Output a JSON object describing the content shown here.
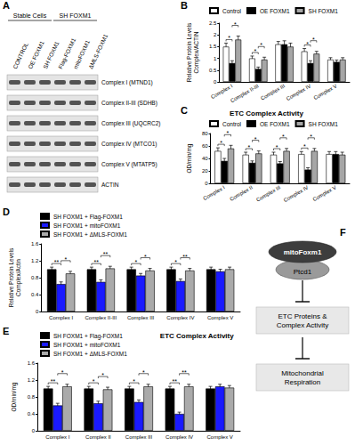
{
  "blot": {
    "label": "A",
    "groups": [
      {
        "text": "Stable Cells",
        "from": 0,
        "to": 2
      },
      {
        "text": "SH FOXM1",
        "from": 3,
        "to": 5
      }
    ],
    "lanes": [
      "CONTROL",
      "OE FOXM1",
      "SH FOXM1",
      "Flag-FOXM1",
      "mitoFOXM1",
      "ΔMLS-FOXM1"
    ],
    "bands": [
      "Complex I (MTND1)",
      "Complex II-III (SDHB)",
      "Complex III (UQCRC2)",
      "Complex IV (MTCO1)",
      "Complex V (MTATP5)",
      "ACTIN"
    ]
  },
  "chart_data": [
    {
      "label": "B",
      "type": "bar",
      "y_label": "Relative Protein Levels\nComplex/ACTIN",
      "categories": [
        "Complex I",
        "Complex II-III",
        "Complex III",
        "Complex IV",
        "Complex V"
      ],
      "series": [
        {
          "name": "Control",
          "color": "#ffffff",
          "values": [
            1.5,
            1.0,
            1.6,
            1.3,
            0.95
          ],
          "errors": [
            0.15,
            0.1,
            0.12,
            0.12,
            0.08
          ]
        },
        {
          "name": "OE FOXM1",
          "color": "#000000",
          "values": [
            0.8,
            0.55,
            1.6,
            0.8,
            0.85
          ],
          "errors": [
            0.1,
            0.08,
            0.15,
            0.1,
            0.08
          ]
        },
        {
          "name": "SH FOXM1",
          "color": "#a6a6a6",
          "values": [
            1.8,
            0.95,
            1.5,
            1.2,
            0.95
          ],
          "errors": [
            0.15,
            0.1,
            0.15,
            0.1,
            0.08
          ]
        }
      ],
      "comparisons": [
        {
          "category": "Complex I",
          "bars": [
            0,
            1
          ],
          "text": "*"
        },
        {
          "category": "Complex I",
          "bars": [
            1,
            2
          ],
          "text": "*"
        },
        {
          "category": "Complex II-III",
          "bars": [
            0,
            1
          ],
          "text": "*"
        },
        {
          "category": "Complex II-III",
          "bars": [
            1,
            2
          ],
          "text": "*"
        },
        {
          "category": "Complex IV",
          "bars": [
            0,
            1
          ],
          "text": "*"
        },
        {
          "category": "Complex IV",
          "bars": [
            1,
            2
          ],
          "text": "*"
        }
      ],
      "ylim": [
        0,
        2.5
      ],
      "yticks": [
        0,
        0.5,
        1,
        1.5,
        2,
        2.5
      ],
      "grid": false
    },
    {
      "label": "C",
      "type": "bar",
      "title": "ETC Complex Activity",
      "y_label": "OD/min/mg",
      "categories": [
        "Complex I",
        "Complex II",
        "Complex III",
        "Complex IV",
        "Complex V"
      ],
      "series": [
        {
          "name": "Control",
          "color": "#ffffff",
          "values": [
            52,
            46,
            46,
            47,
            47
          ],
          "errors": [
            5,
            4,
            4,
            4,
            4
          ]
        },
        {
          "name": "OE FOXM1",
          "color": "#000000",
          "values": [
            36,
            33,
            32,
            22,
            47
          ],
          "errors": [
            4,
            3,
            3,
            3,
            4
          ]
        },
        {
          "name": "SH FOXM1",
          "color": "#a6a6a6",
          "values": [
            56,
            48,
            52,
            52,
            46
          ],
          "errors": [
            5,
            4,
            4,
            4,
            4
          ]
        }
      ],
      "comparisons": [
        {
          "category": "Complex I",
          "bars": [
            0,
            1
          ],
          "text": "*"
        },
        {
          "category": "Complex I",
          "bars": [
            1,
            2
          ],
          "text": "*"
        },
        {
          "category": "Complex II",
          "bars": [
            0,
            1
          ],
          "text": "*"
        },
        {
          "category": "Complex II",
          "bars": [
            1,
            2
          ],
          "text": "*"
        },
        {
          "category": "Complex III",
          "bars": [
            0,
            1
          ],
          "text": "*"
        },
        {
          "category": "Complex III",
          "bars": [
            1,
            2
          ],
          "text": "*"
        },
        {
          "category": "Complex IV",
          "bars": [
            0,
            1
          ],
          "text": "*"
        },
        {
          "category": "Complex IV",
          "bars": [
            1,
            2
          ],
          "text": "*"
        }
      ],
      "ylim": [
        0,
        80
      ],
      "yticks": [
        0,
        20,
        40,
        60,
        80
      ],
      "grid": false
    },
    {
      "label": "D",
      "type": "bar",
      "y_label": "Relative Protein Levels\nComplex/Actin",
      "categories": [
        "Complex I",
        "Complex II-III",
        "Complex III",
        "Complex IV",
        "Complex V"
      ],
      "series": [
        {
          "name": "SH FOXM1 + Flag-FOXM1",
          "color": "#000000",
          "values": [
            1.0,
            1.0,
            1.0,
            1.0,
            1.0
          ],
          "errors": [
            0.05,
            0.05,
            0.05,
            0.05,
            0.05
          ]
        },
        {
          "name": "SH FOXM1 + mitoFOXM1",
          "color": "#1a1aff",
          "values": [
            0.65,
            0.7,
            0.85,
            0.72,
            0.95
          ],
          "errors": [
            0.05,
            0.05,
            0.05,
            0.05,
            0.05
          ]
        },
        {
          "name": "SH FOXM1 + ΔMLS-FOXM1",
          "color": "#aaaaaa",
          "values": [
            0.9,
            1.02,
            0.97,
            0.97,
            1.0
          ],
          "errors": [
            0.05,
            0.05,
            0.05,
            0.05,
            0.05
          ]
        }
      ],
      "comparisons": [
        {
          "category": "Complex I",
          "bars": [
            0,
            1
          ],
          "text": "**"
        },
        {
          "category": "Complex I",
          "bars": [
            1,
            2
          ],
          "text": "*"
        },
        {
          "category": "Complex II-III",
          "bars": [
            0,
            1
          ],
          "text": "**"
        },
        {
          "category": "Complex II-III",
          "bars": [
            1,
            2
          ],
          "text": "**"
        },
        {
          "category": "Complex III",
          "bars": [
            0,
            1
          ],
          "text": "*"
        },
        {
          "category": "Complex III",
          "bars": [
            1,
            2
          ],
          "text": "*"
        },
        {
          "category": "Complex IV",
          "bars": [
            0,
            1
          ],
          "text": "*"
        },
        {
          "category": "Complex IV",
          "bars": [
            1,
            2
          ],
          "text": "**"
        }
      ],
      "ylim": [
        0,
        1.6
      ],
      "yticks": [
        0,
        0.4,
        0.8,
        1.2,
        1.6
      ],
      "grid": false
    },
    {
      "label": "E",
      "type": "bar",
      "title": "ETC Complex Activity",
      "y_label": "OD/min/mg",
      "categories": [
        "Complex I",
        "Complex II",
        "Complex III",
        "Complex IV",
        "Complex V"
      ],
      "series": [
        {
          "name": "SH FOXM1 + Flag-FOXM1",
          "color": "#000000",
          "values": [
            1.0,
            1.0,
            1.0,
            1.0,
            1.0
          ],
          "errors": [
            0.05,
            0.05,
            0.05,
            0.05,
            0.05
          ]
        },
        {
          "name": "SH FOXM1 + mitoFOXM1",
          "color": "#1a1aff",
          "values": [
            0.6,
            0.65,
            0.68,
            0.4,
            1.05
          ],
          "errors": [
            0.05,
            0.05,
            0.05,
            0.04,
            0.05
          ]
        },
        {
          "name": "SH FOXM1 + ΔMLS-FOXM1",
          "color": "#aaaaaa",
          "values": [
            1.05,
            0.98,
            1.05,
            1.05,
            1.02
          ],
          "errors": [
            0.05,
            0.05,
            0.05,
            0.05,
            0.05
          ]
        }
      ],
      "comparisons": [
        {
          "category": "Complex I",
          "bars": [
            0,
            1
          ],
          "text": "**"
        },
        {
          "category": "Complex I",
          "bars": [
            1,
            2
          ],
          "text": "*"
        },
        {
          "category": "Complex II",
          "bars": [
            0,
            1
          ],
          "text": "*"
        },
        {
          "category": "Complex II",
          "bars": [
            1,
            2
          ],
          "text": "*"
        },
        {
          "category": "Complex III",
          "bars": [
            0,
            1
          ],
          "text": "*"
        },
        {
          "category": "Complex III",
          "bars": [
            1,
            2
          ],
          "text": "*"
        },
        {
          "category": "Complex IV",
          "bars": [
            0,
            1
          ],
          "text": "**"
        },
        {
          "category": "Complex IV",
          "bars": [
            1,
            2
          ],
          "text": "**"
        }
      ],
      "ylim": [
        0,
        1.6
      ],
      "yticks": [
        0,
        0.4,
        0.8,
        1.2,
        1.6
      ],
      "grid": false
    }
  ],
  "diagram": {
    "label": "F",
    "top": "mitoFoxm1",
    "partner": "Ptcd1",
    "steps": [
      [
        "ETC Proteins &",
        "Complex Activity"
      ],
      [
        "Mitochondrial",
        "Respiration"
      ]
    ]
  }
}
